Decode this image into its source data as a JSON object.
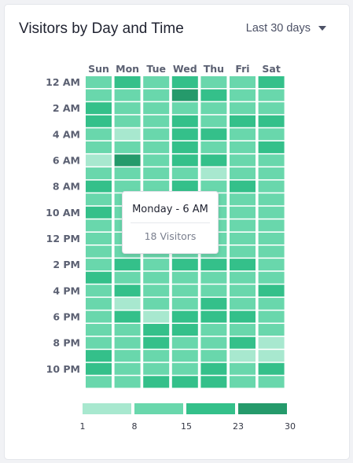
{
  "header": {
    "title": "Visitors by Day and Time",
    "range_label": "Last 30 days",
    "range_icon": "caret-down-icon"
  },
  "tooltip": {
    "title": "Monday - 6 AM",
    "value": "18 Visitors"
  },
  "chart_data": {
    "type": "heatmap",
    "title": "Visitors by Day and Time",
    "x_categories": [
      "Sun",
      "Mon",
      "Tue",
      "Wed",
      "Thu",
      "Fri",
      "Sat"
    ],
    "y_tick_labels": [
      "12 AM",
      "2 AM",
      "4 AM",
      "6 AM",
      "8 AM",
      "10 AM",
      "12 PM",
      "2 PM",
      "4 PM",
      "6 PM",
      "8 PM",
      "10 PM"
    ],
    "y_categories": [
      "12 AM",
      "1 AM",
      "2 AM",
      "3 AM",
      "4 AM",
      "5 AM",
      "6 AM",
      "7 AM",
      "8 AM",
      "9 AM",
      "10 AM",
      "11 AM",
      "12 PM",
      "1 PM",
      "2 PM",
      "3 PM",
      "4 PM",
      "5 PM",
      "6 PM",
      "7 PM",
      "8 PM",
      "9 PM",
      "10 PM",
      "11 PM"
    ],
    "level_rows_note": "",
    "levels": [
      [
        2,
        3,
        2,
        3,
        2,
        2,
        3
      ],
      [
        2,
        2,
        2,
        4,
        3,
        2,
        2
      ],
      [
        3,
        2,
        2,
        2,
        2,
        2,
        2
      ],
      [
        3,
        2,
        2,
        3,
        2,
        3,
        3
      ],
      [
        2,
        1,
        2,
        3,
        3,
        2,
        2
      ],
      [
        2,
        2,
        2,
        3,
        2,
        2,
        3
      ],
      [
        1,
        4,
        2,
        3,
        3,
        2,
        2
      ],
      [
        2,
        2,
        2,
        2,
        1,
        2,
        2
      ],
      [
        3,
        2,
        2,
        3,
        2,
        3,
        2
      ],
      [
        2,
        2,
        2,
        3,
        2,
        2,
        2
      ],
      [
        3,
        2,
        2,
        3,
        2,
        2,
        2
      ],
      [
        2,
        2,
        2,
        2,
        2,
        2,
        2
      ],
      [
        2,
        2,
        2,
        2,
        2,
        2,
        2
      ],
      [
        2,
        2,
        2,
        2,
        2,
        2,
        2
      ],
      [
        2,
        3,
        2,
        3,
        3,
        3,
        2
      ],
      [
        3,
        2,
        2,
        2,
        2,
        2,
        2
      ],
      [
        2,
        3,
        2,
        2,
        2,
        2,
        3
      ],
      [
        2,
        1,
        2,
        2,
        3,
        2,
        2
      ],
      [
        2,
        3,
        1,
        3,
        3,
        3,
        2
      ],
      [
        2,
        2,
        3,
        3,
        2,
        2,
        2
      ],
      [
        2,
        2,
        3,
        2,
        2,
        3,
        1
      ],
      [
        3,
        2,
        2,
        2,
        2,
        1,
        1
      ],
      [
        3,
        2,
        2,
        2,
        3,
        2,
        3
      ],
      [
        2,
        2,
        3,
        3,
        3,
        2,
        2
      ]
    ],
    "legend": {
      "labels": [
        "1",
        "8",
        "15",
        "23",
        "30"
      ]
    },
    "colors": [
      "#a8e8cf",
      "#69d7ac",
      "#34c08a",
      "#259a6b"
    ]
  }
}
